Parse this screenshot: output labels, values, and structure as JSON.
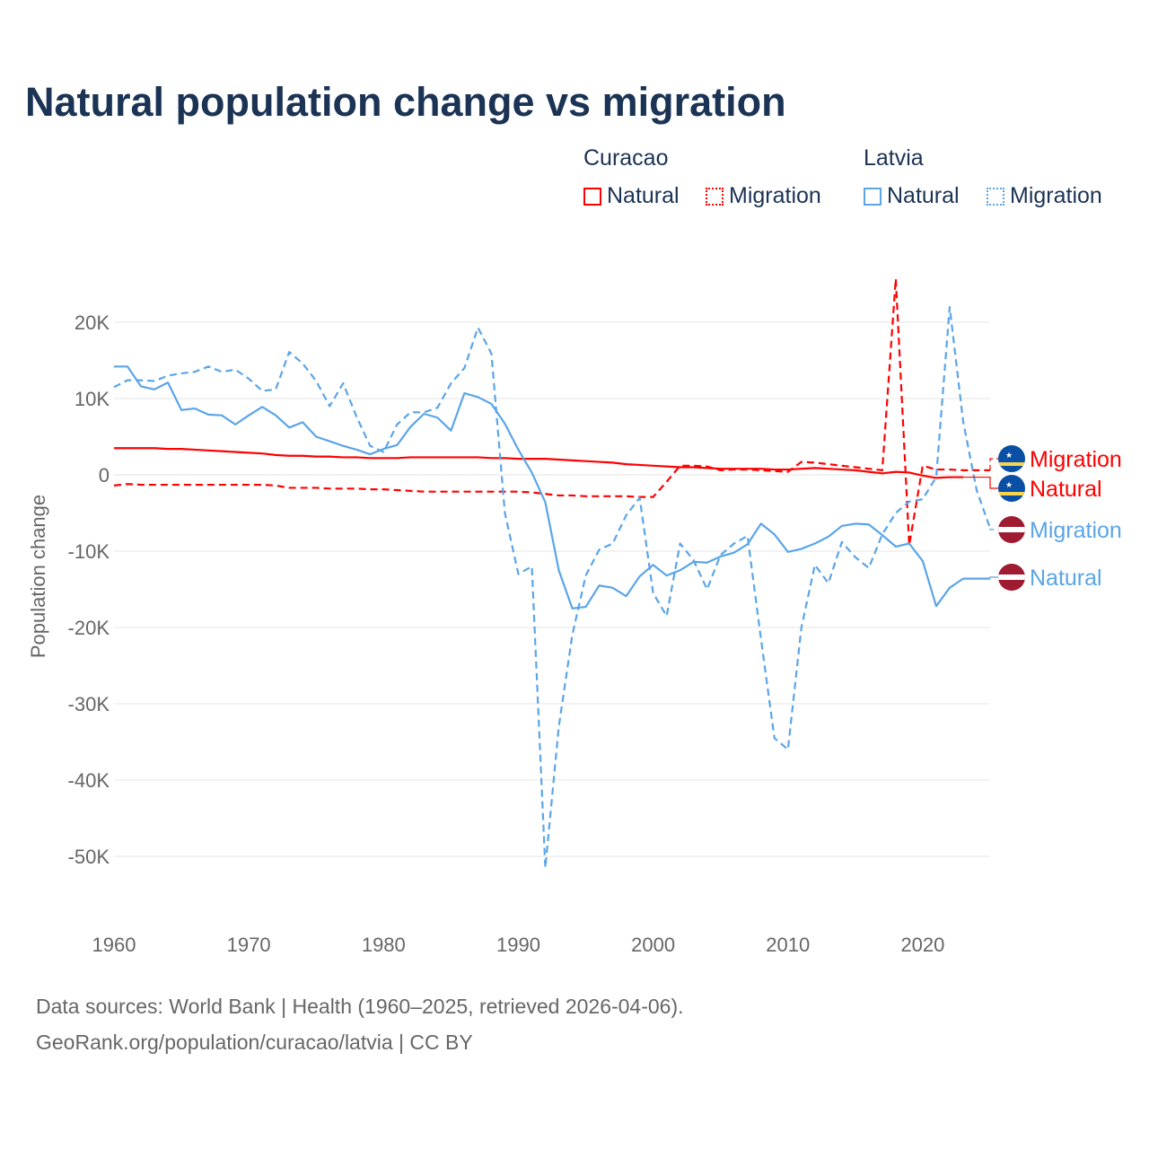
{
  "colors": {
    "curacao": "#ff0000",
    "latvia": "#5aa5e8",
    "title": "#1b3354"
  },
  "legend": {
    "groups": [
      {
        "name": "Curacao",
        "items": [
          "Natural",
          "Migration"
        ]
      },
      {
        "name": "Latvia",
        "items": [
          "Natural",
          "Migration"
        ]
      }
    ]
  },
  "footer": {
    "line1": "Data sources: World Bank | Health (1960–2025, retrieved 2026-04-06).",
    "line2": "GeoRank.org/population/curacao/latvia | CC BY"
  },
  "chart_data": {
    "type": "line",
    "title": "Natural population change vs migration",
    "xlabel": "",
    "ylabel": "Population change",
    "xlim": [
      1960,
      2025
    ],
    "ylim": [
      -55000,
      30000
    ],
    "xticks": [
      1960,
      1970,
      1980,
      1990,
      2000,
      2010,
      2020
    ],
    "yticks": [
      {
        "v": 20000,
        "label": "20K"
      },
      {
        "v": 10000,
        "label": "10K"
      },
      {
        "v": 0,
        "label": "0"
      },
      {
        "v": -10000,
        "label": "-10K"
      },
      {
        "v": -20000,
        "label": "-20K"
      },
      {
        "v": -30000,
        "label": "-30K"
      },
      {
        "v": -40000,
        "label": "-40K"
      },
      {
        "v": -50000,
        "label": "-50K"
      }
    ],
    "grid": true,
    "x_start": 1960,
    "series": [
      {
        "name": "Curacao Migration",
        "country": "Curacao",
        "kind": "Migration",
        "color": "#ff0000",
        "dashed": true,
        "flag": "curacao",
        "end_label": "Migration",
        "values": [
          -1.4,
          -1.2,
          -1.3,
          -1.3,
          -1.3,
          -1.3,
          -1.3,
          -1.3,
          -1.3,
          -1.3,
          -1.3,
          -1.3,
          -1.4,
          -1.7,
          -1.7,
          -1.7,
          -1.8,
          -1.8,
          -1.8,
          -1.9,
          -1.9,
          -2.0,
          -2.1,
          -2.2,
          -2.2,
          -2.2,
          -2.2,
          -2.2,
          -2.2,
          -2.2,
          -2.2,
          -2.3,
          -2.5,
          -2.7,
          -2.7,
          -2.8,
          -2.8,
          -2.8,
          -2.8,
          -2.9,
          -2.9,
          -0.9,
          1.2,
          1.2,
          1.1,
          0.6,
          0.7,
          0.7,
          0.6,
          0.5,
          0.4,
          1.7,
          1.6,
          1.4,
          1.2,
          1.0,
          0.8,
          0.6,
          25.7,
          -9.2,
          1.2,
          0.7,
          0.7,
          0.6,
          0.6,
          0.6
        ]
      },
      {
        "name": "Curacao Natural",
        "country": "Curacao",
        "kind": "Natural",
        "color": "#ff0000",
        "dashed": false,
        "flag": "curacao",
        "end_label": "Natural",
        "values": [
          3.5,
          3.5,
          3.5,
          3.5,
          3.4,
          3.4,
          3.3,
          3.2,
          3.1,
          3.0,
          2.9,
          2.8,
          2.6,
          2.5,
          2.5,
          2.4,
          2.4,
          2.3,
          2.3,
          2.2,
          2.2,
          2.2,
          2.3,
          2.3,
          2.3,
          2.3,
          2.3,
          2.3,
          2.2,
          2.2,
          2.1,
          2.1,
          2.1,
          2.0,
          1.9,
          1.8,
          1.7,
          1.6,
          1.4,
          1.3,
          1.2,
          1.1,
          1.0,
          1.0,
          0.9,
          0.8,
          0.8,
          0.8,
          0.8,
          0.7,
          0.7,
          0.8,
          0.9,
          0.8,
          0.7,
          0.6,
          0.4,
          0.2,
          0.4,
          0.3,
          -0.1,
          -0.4,
          -0.3,
          -0.3
        ]
      },
      {
        "name": "Latvia Migration",
        "country": "Latvia",
        "kind": "Migration",
        "color": "#5aa5e8",
        "dashed": true,
        "flag": "latvia",
        "end_label": "Migration",
        "values": [
          11.5,
          12.4,
          12.4,
          12.3,
          13.0,
          13.3,
          13.5,
          14.2,
          13.5,
          13.8,
          12.6,
          11.0,
          11.2,
          16.1,
          14.6,
          12.3,
          9.0,
          12.0,
          7.6,
          3.8,
          3.0,
          6.6,
          8.2,
          8.2,
          8.8,
          12.0,
          14.0,
          19.3,
          15.9,
          -5.0,
          -13.0,
          -12.0,
          -51.5,
          -33.0,
          -21.0,
          -13.2,
          -9.8,
          -9.0,
          -5.3,
          -3.0,
          -15.5,
          -18.5,
          -9.0,
          -11.2,
          -15.0,
          -10.5,
          -9.0,
          -8.0,
          -21.5,
          -34.5,
          -36.0,
          -20.0,
          -11.8,
          -14.2,
          -8.8,
          -10.8,
          -12.2,
          -7.8,
          -5.0,
          -3.5,
          -3.2,
          -0.3,
          22.0,
          7.0,
          -2.0,
          -7.0
        ]
      },
      {
        "name": "Latvia Natural",
        "country": "Latvia",
        "kind": "Natural",
        "color": "#5aa5e8",
        "dashed": false,
        "flag": "latvia",
        "end_label": "Natural",
        "values": [
          14.2,
          14.2,
          11.6,
          11.2,
          12.1,
          8.5,
          8.7,
          7.9,
          7.8,
          6.6,
          7.8,
          8.9,
          7.8,
          6.2,
          6.9,
          5.0,
          4.4,
          3.8,
          3.3,
          2.7,
          3.4,
          3.9,
          6.3,
          8.0,
          7.5,
          5.8,
          10.7,
          10.2,
          9.3,
          6.7,
          3.3,
          0.3,
          -3.6,
          -12.5,
          -17.5,
          -17.3,
          -14.5,
          -14.8,
          -15.9,
          -13.3,
          -11.8,
          -13.2,
          -12.5,
          -11.4,
          -11.5,
          -10.7,
          -10.2,
          -9.1,
          -6.4,
          -7.8,
          -10.1,
          -9.7,
          -9.0,
          -8.1,
          -6.7,
          -6.4,
          -6.5,
          -7.9,
          -9.4,
          -9.0,
          -11.3,
          -17.2,
          -14.8,
          -13.6,
          -13.6,
          -13.6
        ]
      }
    ],
    "values_unit": "thousands"
  }
}
